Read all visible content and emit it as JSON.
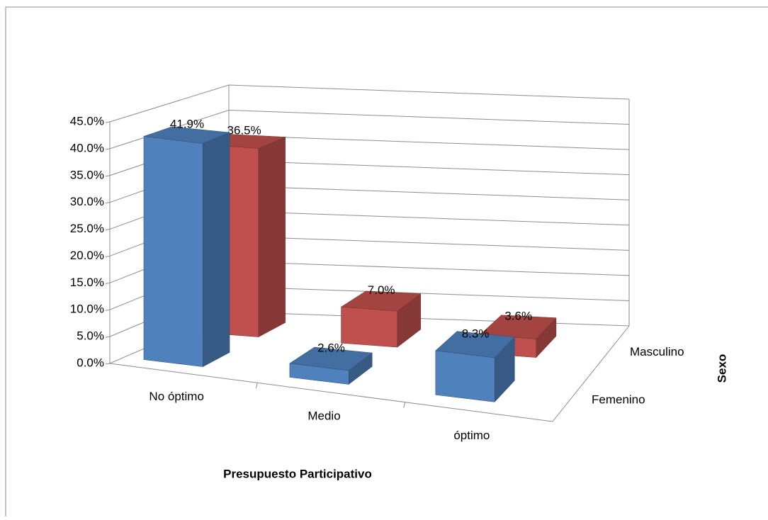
{
  "chart_data": {
    "type": "bar3d",
    "xlabel": "Presupuesto Participativo",
    "zlabel": "Sexo",
    "categories": [
      "No óptimo",
      "Medio",
      "óptimo"
    ],
    "series": [
      {
        "name": "Femenino",
        "color": "#4f81bd",
        "values": [
          41.9,
          2.6,
          8.3
        ],
        "value_labels": [
          "41.9%",
          "2.6%",
          "8.3%"
        ]
      },
      {
        "name": "Masculino",
        "color": "#c0504d",
        "values": [
          36.5,
          7.0,
          3.6
        ],
        "value_labels": [
          "36.5%",
          "7.0%",
          "3.6%"
        ]
      }
    ],
    "ylim": [
      0,
      45
    ],
    "yticks": [
      {
        "value": 0,
        "label": "0.0%"
      },
      {
        "value": 5,
        "label": "5.0%"
      },
      {
        "value": 10,
        "label": "10.0%"
      },
      {
        "value": 15,
        "label": "15.0%"
      },
      {
        "value": 20,
        "label": "20.0%"
      },
      {
        "value": 25,
        "label": "25.0%"
      },
      {
        "value": 30,
        "label": "30.0%"
      },
      {
        "value": 35,
        "label": "35.0%"
      },
      {
        "value": 40,
        "label": "40.0%"
      },
      {
        "value": 45,
        "label": "45.0%"
      }
    ],
    "grid": true
  }
}
